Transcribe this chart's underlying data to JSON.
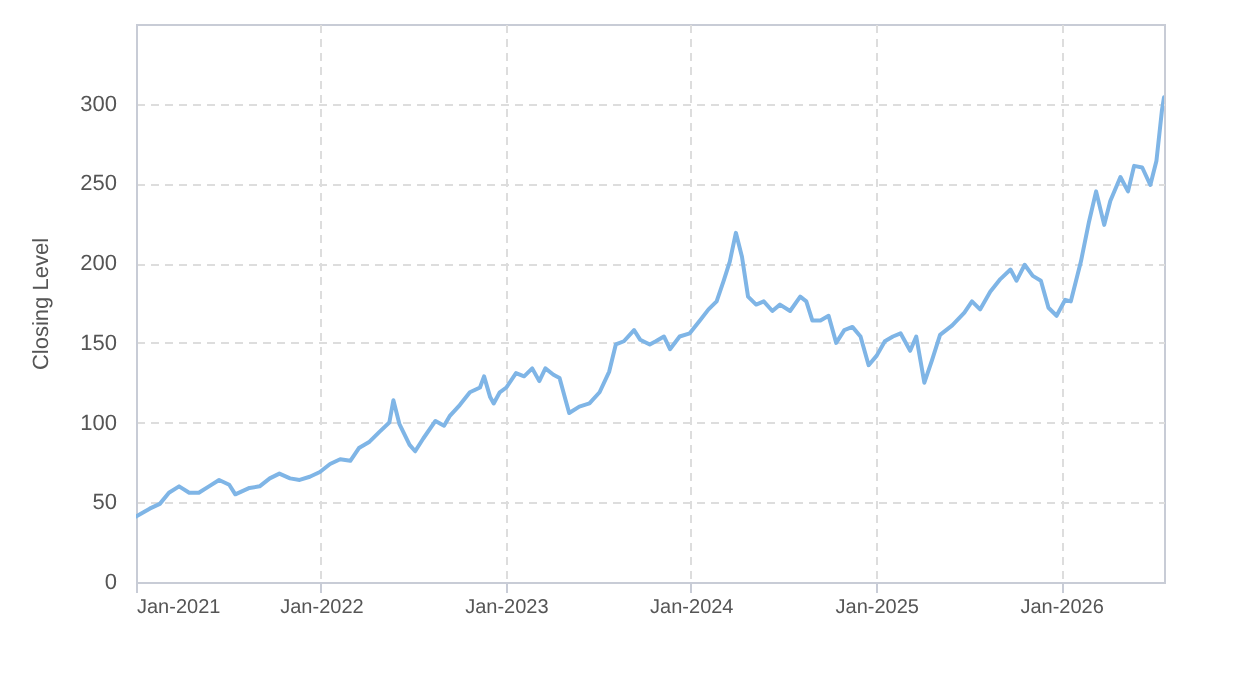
{
  "chart_data": {
    "type": "line",
    "ylabel": "Closing Level",
    "grid": true,
    "line_style": "solid",
    "marker": "none",
    "x": [
      "2021-01-01",
      "2021-01-28",
      "2021-02-17",
      "2021-03-07",
      "2021-03-27",
      "2021-04-16",
      "2021-05-05",
      "2021-05-25",
      "2021-06-14",
      "2021-07-04",
      "2021-07-16",
      "2021-08-13",
      "2021-09-02",
      "2021-09-22",
      "2021-10-11",
      "2021-11-01",
      "2021-11-20",
      "2021-12-10",
      "2021-12-30",
      "2022-01-19",
      "2022-02-08",
      "2022-02-28",
      "2022-03-17",
      "2022-04-07",
      "2022-04-26",
      "2022-05-16",
      "2022-05-24",
      "2022-06-05",
      "2022-06-25",
      "2022-07-06",
      "2022-07-22",
      "2022-08-15",
      "2022-09-01",
      "2022-09-12",
      "2022-10-02",
      "2022-10-22",
      "2022-11-11",
      "2022-11-19",
      "2022-12-01",
      "2022-12-08",
      "2022-12-20",
      "2023-01-02",
      "2023-01-21",
      "2023-02-06",
      "2023-02-22",
      "2023-03-08",
      "2023-03-20",
      "2023-04-05",
      "2023-04-17",
      "2023-04-29",
      "2023-05-06",
      "2023-05-26",
      "2023-06-15",
      "2023-07-05",
      "2023-07-24",
      "2023-08-06",
      "2023-08-22",
      "2023-09-11",
      "2023-09-23",
      "2023-10-12",
      "2023-10-24",
      "2023-11-09",
      "2023-11-21",
      "2023-12-10",
      "2023-12-30",
      "2024-01-19",
      "2024-02-05",
      "2024-02-21",
      "2024-03-06",
      "2024-03-18",
      "2024-03-30",
      "2024-04-11",
      "2024-04-23",
      "2024-05-09",
      "2024-05-24",
      "2024-06-10",
      "2024-06-25",
      "2024-07-15",
      "2024-08-04",
      "2024-08-16",
      "2024-08-28",
      "2024-09-13",
      "2024-09-29",
      "2024-10-14",
      "2024-10-30",
      "2024-11-15",
      "2024-12-01",
      "2024-12-17",
      "2025-01-02",
      "2025-01-18",
      "2025-02-03",
      "2025-02-18",
      "2025-03-09",
      "2025-03-21",
      "2025-04-06",
      "2025-04-21",
      "2025-05-07",
      "2025-05-31",
      "2025-06-24",
      "2025-07-09",
      "2025-07-25",
      "2025-08-14",
      "2025-09-03",
      "2025-09-23",
      "2025-10-05",
      "2025-10-21",
      "2025-11-06",
      "2025-11-22",
      "2025-12-07",
      "2025-12-23",
      "2026-01-09",
      "2026-01-20",
      "2026-02-09",
      "2026-02-25",
      "2026-03-11",
      "2026-03-27",
      "2026-04-08",
      "2026-04-28",
      "2026-05-13",
      "2026-05-25",
      "2026-06-10",
      "2026-06-26",
      "2026-07-08",
      "2026-07-19",
      "2026-07-23"
    ],
    "series": [
      {
        "color": "#7fb5e6",
        "values": [
          41,
          46,
          49,
          56,
          60,
          56,
          56,
          60,
          64,
          61,
          55,
          59,
          60,
          65,
          68,
          65,
          64,
          66,
          69,
          74,
          77,
          76,
          84,
          88,
          94,
          100,
          114,
          99,
          86,
          82,
          90,
          101,
          98,
          104,
          111,
          119,
          122,
          129,
          116,
          112,
          119,
          122,
          131,
          129,
          134,
          126,
          134,
          130,
          128,
          114,
          106,
          110,
          112,
          119,
          132,
          149,
          151,
          158,
          152,
          149,
          151,
          154,
          146,
          154,
          156,
          164,
          171,
          176,
          189,
          201,
          219,
          204,
          179,
          174,
          176,
          170,
          174,
          170,
          179,
          176,
          164,
          164,
          167,
          150,
          158,
          160,
          154,
          136,
          142,
          151,
          154,
          156,
          145,
          154,
          125,
          139,
          155,
          161,
          169,
          176,
          171,
          182,
          190,
          196,
          189,
          199,
          192,
          189,
          172,
          167,
          177,
          176,
          201,
          226,
          245,
          224,
          239,
          254,
          245,
          261,
          260,
          249,
          264,
          296,
          304
        ]
      }
    ],
    "xlim": [
      "2021-01-01",
      "2026-07-23"
    ],
    "xticks": [
      {
        "value": "2021-01-01",
        "label": "Jan-2021"
      },
      {
        "value": "2022-01-01",
        "label": "Jan-2022"
      },
      {
        "value": "2023-01-01",
        "label": "Jan-2023"
      },
      {
        "value": "2024-01-01",
        "label": "Jan-2024"
      },
      {
        "value": "2025-01-01",
        "label": "Jan-2025"
      },
      {
        "value": "2026-01-01",
        "label": "Jan-2026"
      }
    ],
    "ylim": [
      0,
      350
    ],
    "yticks": [
      0,
      50,
      100,
      150,
      200,
      250,
      300
    ]
  }
}
